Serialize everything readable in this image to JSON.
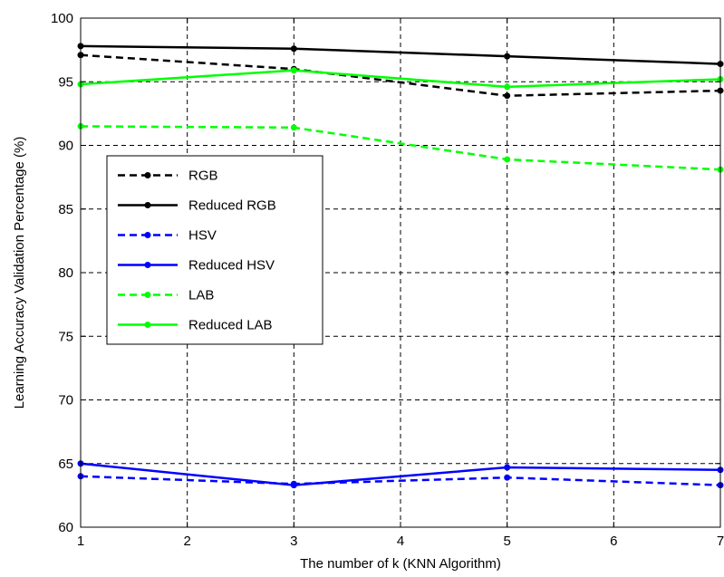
{
  "chart_data": {
    "type": "line",
    "title": "",
    "xlabel": "The number of k (KNN Algorithm)",
    "ylabel": "Learning Accuracy Validation Percentage (%)",
    "xlim": [
      1,
      7
    ],
    "ylim": [
      60,
      100
    ],
    "xticks": [
      1,
      2,
      3,
      4,
      5,
      6,
      7
    ],
    "yticks": [
      60,
      65,
      70,
      75,
      80,
      85,
      90,
      95,
      100
    ],
    "grid": true,
    "legend_position": "middle-left",
    "x": [
      1,
      3,
      5,
      7
    ],
    "series": [
      {
        "name": "RGB",
        "color": "#000000",
        "dashed": true,
        "values": [
          97.1,
          96.0,
          93.9,
          94.3
        ]
      },
      {
        "name": "Reduced RGB",
        "color": "#000000",
        "dashed": false,
        "values": [
          97.8,
          97.6,
          97.0,
          96.4
        ]
      },
      {
        "name": "HSV",
        "color": "#0000ff",
        "dashed": true,
        "values": [
          64.0,
          63.4,
          63.9,
          63.3
        ]
      },
      {
        "name": "Reduced HSV",
        "color": "#0000ff",
        "dashed": false,
        "values": [
          65.0,
          63.3,
          64.7,
          64.5
        ]
      },
      {
        "name": "LAB",
        "color": "#00ff00",
        "dashed": true,
        "values": [
          91.5,
          91.4,
          88.9,
          88.1
        ]
      },
      {
        "name": "Reduced LAB",
        "color": "#00ff00",
        "dashed": false,
        "values": [
          94.8,
          95.9,
          94.6,
          95.2
        ]
      }
    ]
  }
}
